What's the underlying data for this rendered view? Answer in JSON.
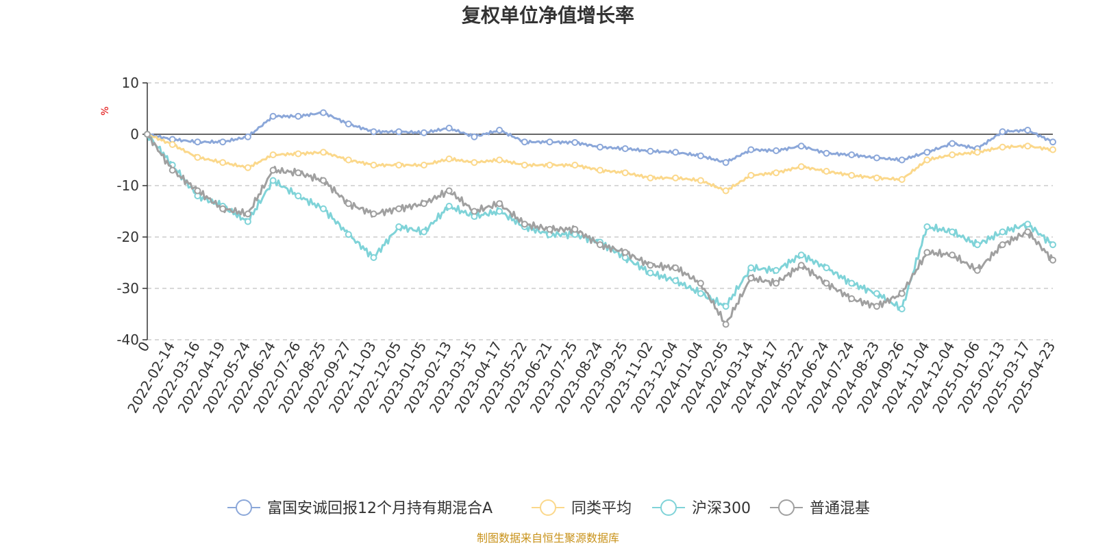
{
  "chart_data": {
    "type": "line",
    "title": "复权单位净值增长率",
    "ylabel": "%",
    "ylim": [
      -40,
      10
    ],
    "yticks": [
      10,
      0,
      -10,
      -20,
      -30,
      -40
    ],
    "grid": true,
    "legend_position": "bottom",
    "source": "制图数据来自恒生聚源数据库",
    "x_tick_labels": [
      "0",
      "2022-02-14",
      "2022-03-16",
      "2022-04-19",
      "2022-05-24",
      "2022-06-24",
      "2022-07-26",
      "2022-08-25",
      "2022-09-27",
      "2022-11-03",
      "2022-12-05",
      "2023-01-05",
      "2023-02-13",
      "2023-03-15",
      "2023-04-17",
      "2023-05-22",
      "2023-06-21",
      "2023-07-25",
      "2023-08-24",
      "2023-09-25",
      "2023-11-02",
      "2023-12-04",
      "2024-01-04",
      "2024-02-05",
      "2024-03-14",
      "2024-04-17",
      "2024-05-22",
      "2024-06-24",
      "2024-07-24",
      "2024-08-23",
      "2024-09-26",
      "2024-11-04",
      "2024-12-04",
      "2025-01-06",
      "2025-02-13",
      "2025-03-17",
      "2025-04-23"
    ],
    "series": [
      {
        "name": "富国安诚回报12个月持有期混合A",
        "color": "#8ba7d9",
        "values": [
          0,
          -1,
          -1.5,
          -1.5,
          -0.5,
          3.5,
          3.5,
          4.2,
          2,
          0.5,
          0.5,
          0.3,
          1.2,
          -0.5,
          0.8,
          -1.5,
          -1.5,
          -1.6,
          -2.5,
          -2.8,
          -3.3,
          -3.5,
          -4.2,
          -5.5,
          -3,
          -3.2,
          -2.3,
          -3.7,
          -4,
          -4.6,
          -5,
          -3.5,
          -1.8,
          -2.8,
          0.5,
          0.8,
          -1.5
        ]
      },
      {
        "name": "同类平均",
        "color": "#fbd88b",
        "values": [
          0,
          -2,
          -4.5,
          -5.5,
          -6.5,
          -4,
          -3.8,
          -3.5,
          -5,
          -6,
          -6,
          -6,
          -4.8,
          -5.5,
          -5,
          -6,
          -6,
          -6,
          -7,
          -7.5,
          -8.5,
          -8.5,
          -9,
          -11,
          -8,
          -7.5,
          -6.3,
          -7.2,
          -8,
          -8.5,
          -8.8,
          -5,
          -4,
          -3.5,
          -2.5,
          -2.3,
          -3
        ]
      },
      {
        "name": "沪深300",
        "color": "#7fd3d8",
        "values": [
          0,
          -6,
          -12,
          -14,
          -17,
          -9,
          -12,
          -14.5,
          -19.5,
          -24,
          -18,
          -19,
          -14,
          -16,
          -15,
          -18,
          -19.5,
          -19.5,
          -21,
          -24,
          -27,
          -28.5,
          -31,
          -33.5,
          -26,
          -26.5,
          -23.5,
          -26,
          -29,
          -31,
          -34,
          -18,
          -19,
          -21.5,
          -19,
          -17.5,
          -21.5
        ]
      },
      {
        "name": "普通混基",
        "color": "#a0a0a0",
        "values": [
          0,
          -7,
          -11,
          -14.5,
          -15.5,
          -7,
          -7.5,
          -9,
          -13.5,
          -15.5,
          -14.5,
          -13.5,
          -11,
          -15,
          -13.5,
          -17.5,
          -18.5,
          -18.5,
          -21.5,
          -23,
          -25.5,
          -26,
          -29,
          -37,
          -28,
          -29,
          -25.5,
          -29,
          -32,
          -33.5,
          -31,
          -23,
          -23.5,
          -26.5,
          -21.5,
          -19,
          -24.5
        ]
      }
    ]
  }
}
